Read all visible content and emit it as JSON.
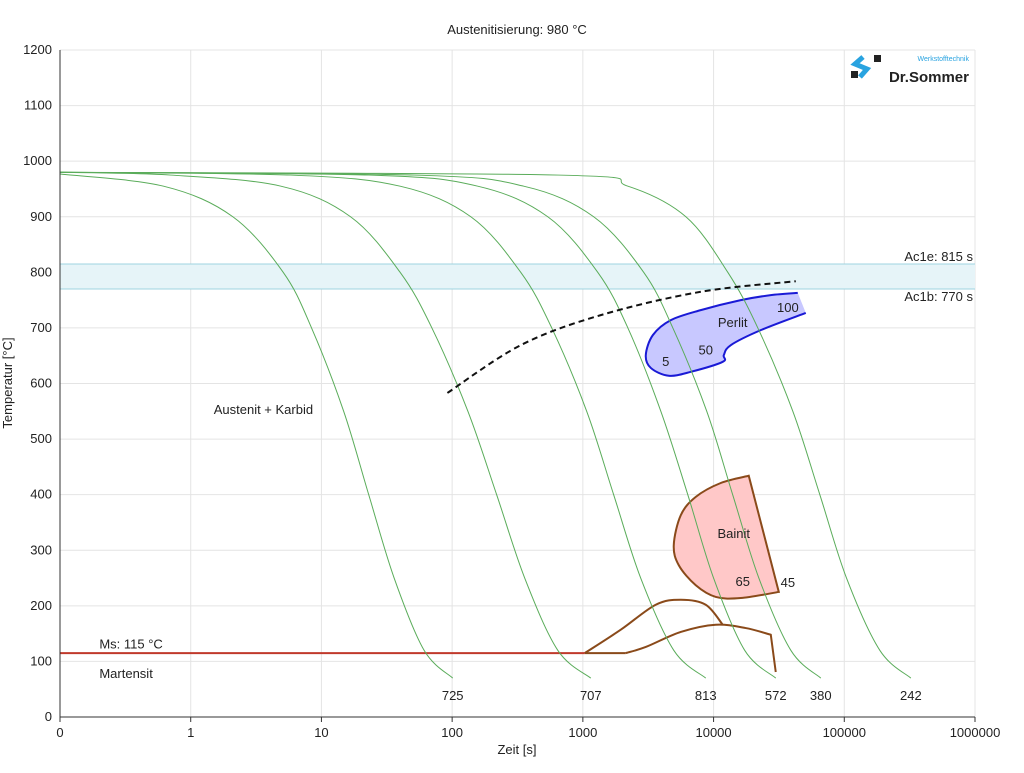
{
  "chart_data": {
    "type": "line",
    "title": "Austenitisierung: 980 °C",
    "xlabel": "Zeit [s]",
    "ylabel": "Temperatur [°C]",
    "x_scale": "log",
    "xlim": [
      0.1,
      1000000
    ],
    "ylim": [
      0,
      1200
    ],
    "grid": true,
    "x_ticks": [
      {
        "value": 0.1,
        "label": "0"
      },
      {
        "value": 1,
        "label": "1"
      },
      {
        "value": 10,
        "label": "10"
      },
      {
        "value": 100,
        "label": "100"
      },
      {
        "value": 1000,
        "label": "1000"
      },
      {
        "value": 10000,
        "label": "10000"
      },
      {
        "value": 100000,
        "label": "100000"
      },
      {
        "value": 1000000,
        "label": "1000000"
      }
    ],
    "y_ticks": [
      0,
      100,
      200,
      300,
      400,
      500,
      600,
      700,
      800,
      900,
      1000,
      1100,
      1200
    ],
    "colors": {
      "cooling": "#5aac5a",
      "perlit_line": "#1a1ad6",
      "perlit_fill": "#c8c8ff",
      "bainit_line": "#8a4a1a",
      "bainit_fill": "#ffc8c8",
      "ms_line": "#c0392b",
      "ac_band": "#e6f4f8",
      "ac_line": "#9fd3e0",
      "dashed": "#111111"
    },
    "ac_band": {
      "ac1e": {
        "label": "Ac1e: 815 s",
        "value": 815
      },
      "ac1b": {
        "label": "Ac1b: 770 s",
        "value": 770
      }
    },
    "cooling_curves": [
      {
        "label": "725",
        "points": [
          [
            0.1,
            977
          ],
          [
            0.62,
            955
          ],
          [
            2.1,
            900
          ],
          [
            5.1,
            800
          ],
          [
            8.4,
            700
          ],
          [
            14.8,
            550
          ],
          [
            23,
            400
          ],
          [
            36,
            250
          ],
          [
            61,
            120
          ],
          [
            101,
            70
          ]
        ]
      },
      {
        "label": "707",
        "points": [
          [
            0.1,
            980
          ],
          [
            0.7,
            975
          ],
          [
            4.9,
            955
          ],
          [
            16.7,
            900
          ],
          [
            40,
            800
          ],
          [
            70,
            700
          ],
          [
            132,
            550
          ],
          [
            219,
            400
          ],
          [
            359,
            250
          ],
          [
            643,
            120
          ],
          [
            1150,
            70
          ]
        ]
      },
      {
        "label": "813",
        "points": [
          [
            0.1,
            980
          ],
          [
            5.8,
            975
          ],
          [
            40,
            955
          ],
          [
            139,
            900
          ],
          [
            335,
            800
          ],
          [
            578,
            700
          ],
          [
            1070,
            550
          ],
          [
            1720,
            400
          ],
          [
            2770,
            250
          ],
          [
            4960,
            120
          ],
          [
            8710,
            70
          ]
        ]
      },
      {
        "label": "572",
        "points": [
          [
            0.1,
            980
          ],
          [
            23,
            975
          ],
          [
            157,
            955
          ],
          [
            539,
            900
          ],
          [
            1300,
            800
          ],
          [
            2210,
            700
          ],
          [
            3950,
            550
          ],
          [
            6350,
            400
          ],
          [
            10000,
            250
          ],
          [
            17300,
            120
          ],
          [
            29900,
            70
          ]
        ]
      },
      {
        "label": "380",
        "points": [
          [
            0.1,
            980
          ],
          [
            51,
            975
          ],
          [
            353,
            955
          ],
          [
            1210,
            900
          ],
          [
            2920,
            800
          ],
          [
            4880,
            700
          ],
          [
            8870,
            550
          ],
          [
            14000,
            400
          ],
          [
            22200,
            250
          ],
          [
            39000,
            120
          ],
          [
            66100,
            70
          ]
        ]
      },
      {
        "label": "242",
        "points": [
          [
            0.1,
            980
          ],
          [
            643,
            975
          ],
          [
            2210,
            955
          ],
          [
            6140,
            900
          ],
          [
            12850,
            800
          ],
          [
            21800,
            700
          ],
          [
            40400,
            550
          ],
          [
            65000,
            400
          ],
          [
            104000,
            250
          ],
          [
            187000,
            120
          ],
          [
            323000,
            70
          ]
        ]
      }
    ],
    "dashed_line": [
      [
        92,
        583
      ],
      [
        335,
        669
      ],
      [
        1371,
        723
      ],
      [
        7980,
        765
      ],
      [
        42560,
        784
      ]
    ],
    "perlit": {
      "label": "Perlit",
      "outline": [
        [
          44060,
          763
        ],
        [
          27400,
          759
        ],
        [
          16150,
          750
        ],
        [
          7980,
          732
        ],
        [
          4710,
          714
        ],
        [
          3430,
          687
        ],
        [
          3030,
          651
        ],
        [
          3310,
          628
        ],
        [
          4540,
          614
        ],
        [
          6700,
          621
        ],
        [
          11750,
          639
        ],
        [
          11970,
          651
        ],
        [
          13540,
          669
        ],
        [
          22960,
          696
        ],
        [
          50740,
          727
        ]
      ],
      "labels": [
        {
          "text": "5",
          "t": 4310,
          "T": 639
        },
        {
          "text": "50",
          "t": 8710,
          "T": 659
        },
        {
          "text": "100",
          "t": 37000,
          "T": 736
        }
      ],
      "label_pos": [
        14000,
        709
      ]
    },
    "bainit": {
      "label": "Bainit",
      "outline": [
        [
          18580,
          434
        ],
        [
          11350,
          421
        ],
        [
          7310,
          396
        ],
        [
          5610,
          363
        ],
        [
          4960,
          309
        ],
        [
          5420,
          273
        ],
        [
          7310,
          237
        ],
        [
          10400,
          216
        ],
        [
          16150,
          214
        ],
        [
          31550,
          225
        ]
      ],
      "labels": [
        {
          "text": "65",
          "t": 16710,
          "T": 243
        },
        {
          "text": "45",
          "t": 37000,
          "T": 241
        }
      ],
      "label_pos": [
        14280,
        329
      ],
      "upper_curve": [
        [
          1035,
          115
        ],
        [
          1950,
          157
        ],
        [
          3610,
          202
        ],
        [
          5610,
          211
        ],
        [
          8710,
          202
        ],
        [
          11750,
          166
        ]
      ],
      "lower_curve": [
        [
          2130,
          115
        ],
        [
          3030,
          126
        ],
        [
          5610,
          153
        ],
        [
          10400,
          166
        ],
        [
          17630,
          160
        ],
        [
          27400,
          148
        ],
        [
          29900,
          81
        ]
      ]
    },
    "ms": {
      "label": "Ms: 115 °C",
      "value": 115,
      "t_end": 1035
    },
    "annotations": [
      {
        "text": "Austenit + Karbid",
        "t": 1.5,
        "T": 552
      },
      {
        "text": "Martensit",
        "t": 0.2,
        "T": 77
      }
    ],
    "ms_label_pos": [
      0.2,
      130
    ],
    "end_label_T": 38
  },
  "logo": {
    "text": "Dr.Sommer",
    "subtitle": "Werkstofftechnik"
  }
}
